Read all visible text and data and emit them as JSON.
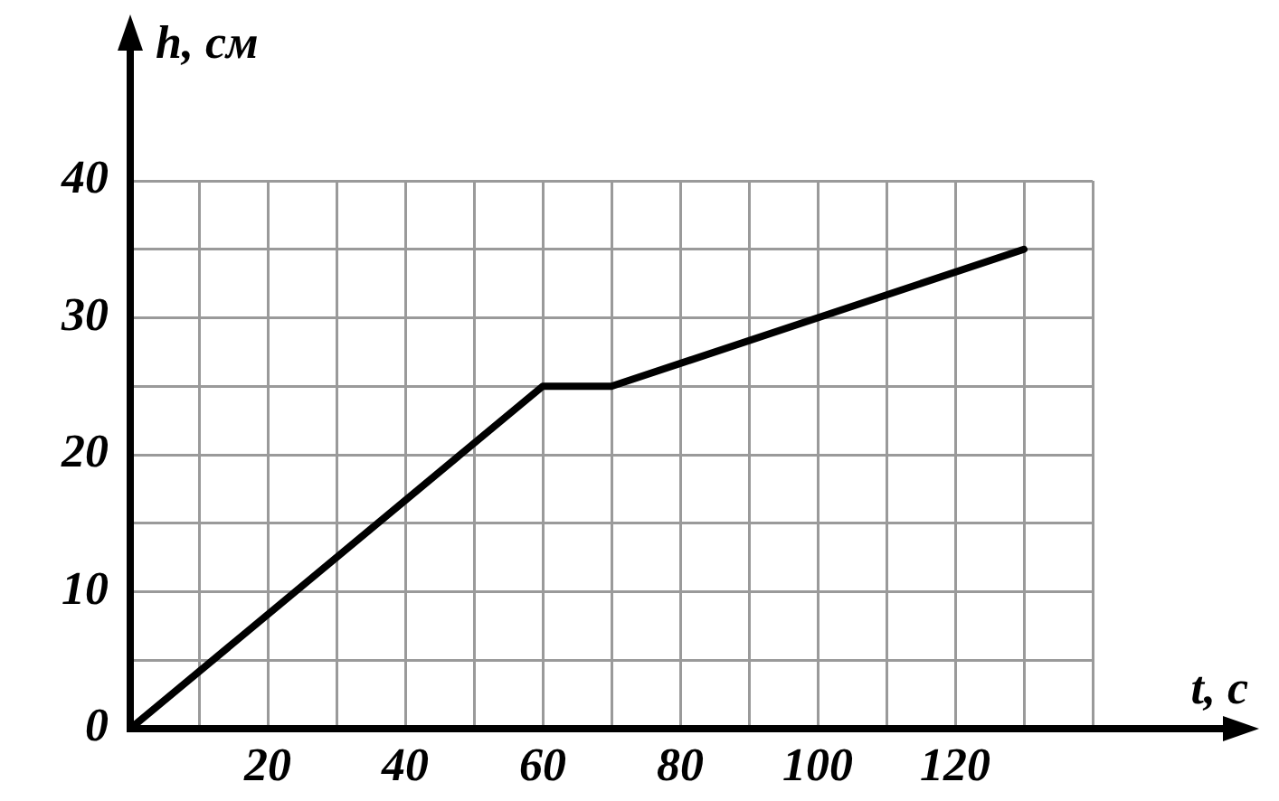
{
  "chart_data": {
    "type": "line",
    "xlabel": "t, с",
    "ylabel": "h, см",
    "x": [
      0,
      60,
      70,
      130
    ],
    "values": [
      0,
      25,
      25,
      35
    ],
    "color": "#000000",
    "xlim": [
      0,
      140
    ],
    "ylim": [
      0,
      40
    ],
    "xticks": [
      {
        "value": 0,
        "label": null
      },
      {
        "value": 10,
        "label": null
      },
      20,
      {
        "value": 30,
        "label": null
      },
      40,
      {
        "value": 50,
        "label": null
      },
      60,
      {
        "value": 70,
        "label": null
      },
      80,
      {
        "value": 90,
        "label": null
      },
      100,
      {
        "value": 110,
        "label": null
      },
      120,
      {
        "value": 130,
        "label": null
      },
      {
        "value": 140,
        "label": null
      }
    ],
    "yticks": [
      0,
      {
        "value": 5,
        "label": null
      },
      10,
      {
        "value": 15,
        "label": null
      },
      20,
      {
        "value": 25,
        "label": null
      },
      30,
      {
        "value": 35,
        "label": null
      },
      40
    ],
    "grid": true,
    "marker": "none",
    "line_style": "solid",
    "legend": false
  }
}
